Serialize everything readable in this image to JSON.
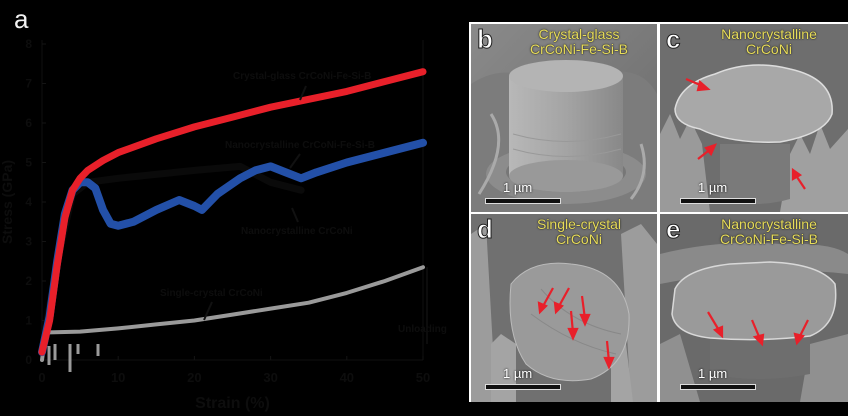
{
  "figure": {
    "panel_labels": [
      "a",
      "b",
      "c",
      "d",
      "e"
    ]
  },
  "chart_data": {
    "type": "line",
    "title": "",
    "xlabel": "Strain (%)",
    "ylabel": "Stress (GPa)",
    "xlim": [
      0,
      50
    ],
    "ylim": [
      0,
      8
    ],
    "x_ticks": [
      0,
      10,
      20,
      30,
      40,
      50
    ],
    "y_ticks": [
      0,
      1,
      2,
      3,
      4,
      5,
      6,
      7,
      8
    ],
    "grid": false,
    "legend": "inline annotations with arrows",
    "series": [
      {
        "name": "Crystal-glass CrCoNi-Fe-Si-B",
        "color": "#e8202a",
        "x": [
          0,
          1,
          2,
          3,
          4,
          5,
          6,
          8,
          10,
          15,
          20,
          25,
          30,
          35,
          40,
          45,
          50
        ],
        "y": [
          0.2,
          1.0,
          2.4,
          3.6,
          4.3,
          4.6,
          4.8,
          5.05,
          5.25,
          5.6,
          5.9,
          6.15,
          6.4,
          6.6,
          6.8,
          7.05,
          7.3
        ]
      },
      {
        "name": "Nanocrystalline CrCoNi-Fe-Si-B",
        "color": "#2350a8",
        "x": [
          0,
          1,
          2,
          3,
          4,
          5,
          6,
          7,
          8,
          9,
          10,
          12,
          15,
          18,
          20,
          21,
          23,
          26,
          28,
          30,
          32,
          34,
          36,
          40,
          45,
          50
        ],
        "y": [
          0.2,
          1.1,
          2.5,
          3.7,
          4.3,
          4.5,
          4.5,
          4.35,
          3.8,
          3.45,
          3.4,
          3.5,
          3.8,
          4.05,
          3.9,
          3.8,
          4.2,
          4.6,
          4.8,
          4.9,
          4.75,
          4.6,
          4.75,
          5.0,
          5.25,
          5.5
        ]
      },
      {
        "name": "Nanocrystalline CrCoNi",
        "color": "#0a0a0a",
        "x": [
          0,
          2,
          4,
          6,
          10,
          20,
          26,
          30,
          34
        ],
        "y": [
          0.2,
          2.5,
          4.2,
          4.5,
          4.6,
          4.8,
          4.9,
          4.5,
          4.3
        ]
      },
      {
        "name": "Single-crystal CrCoNi",
        "color": "#9a9a9a",
        "x": [
          0,
          0.5,
          1,
          5,
          10,
          15,
          20,
          25,
          30,
          35,
          40,
          45,
          50
        ],
        "y": [
          0,
          0.7,
          0.7,
          0.72,
          0.8,
          0.9,
          1.0,
          1.15,
          1.3,
          1.45,
          1.7,
          2.0,
          2.35
        ]
      }
    ],
    "annotations": [
      {
        "text": "Crystal-glass CrCoNi-Fe-Si-B",
        "target_series": "Crystal-glass CrCoNi-Fe-Si-B"
      },
      {
        "text": "Nanocrystalline CrCoNi-Fe-Si-B",
        "target_series": "Nanocrystalline CrCoNi-Fe-Si-B"
      },
      {
        "text": "Nanocrystalline CrCoNi",
        "target_series": "Nanocrystalline CrCoNi"
      },
      {
        "text": "Single-crystal CrCoNi",
        "target_series": "Single-crystal CrCoNi"
      },
      {
        "text": "Unloading",
        "x": 50,
        "y": 0.5
      }
    ]
  },
  "chart": {
    "panel_letter": "a",
    "xlabel": "Strain (%)",
    "ylabel": "Stress (GPa)",
    "x_tick_labels": [
      "0",
      "10",
      "20",
      "30",
      "40",
      "50"
    ],
    "y_tick_labels": [
      "0",
      "1",
      "2",
      "3",
      "4",
      "5",
      "6",
      "7",
      "8"
    ],
    "annotation_crystal_glass": "Crystal-glass CrCoNi-Fe-Si-B",
    "annotation_nano_fesib": "Nanocrystalline CrCoNi-Fe-Si-B",
    "annotation_nano": "Nanocrystalline CrCoNi",
    "annotation_single": "Single-crystal CrCoNi",
    "annotation_unloading": "Unloading"
  },
  "sem_panels": [
    {
      "letter": "b",
      "title_line1": "Crystal-glass",
      "title_line2": "CrCoNi-Fe-Si-B",
      "scale": "1 µm",
      "arrow_color": "#e8202a"
    },
    {
      "letter": "c",
      "title_line1": "Nanocrystalline",
      "title_line2": "CrCoNi",
      "scale": "1 µm",
      "arrow_color": "#e8202a"
    },
    {
      "letter": "d",
      "title_line1": "Single-crystal",
      "title_line2": "CrCoNi",
      "scale": "1 µm",
      "arrow_color": "#e8202a"
    },
    {
      "letter": "e",
      "title_line1": "Nanocrystalline",
      "title_line2": "CrCoNi-Fe-Si-B",
      "scale": "1 µm",
      "arrow_color": "#e8202a"
    }
  ]
}
